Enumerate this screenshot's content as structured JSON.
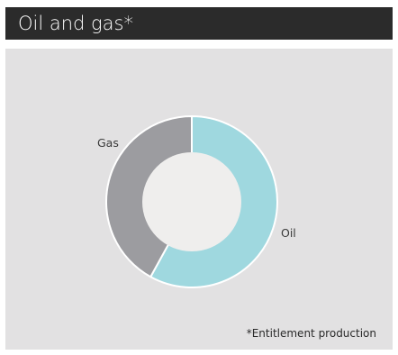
{
  "header": {
    "title": "Oil and gas*"
  },
  "chart_data": {
    "type": "pie",
    "donut": true,
    "categories": [
      "Oil",
      "Gas"
    ],
    "values": [
      0.58,
      0.42
    ],
    "colors": {
      "Oil": "#9fd8df",
      "Gas": "#9c9ca0",
      "hole": "#efeeed"
    },
    "legend": "none",
    "annotation": "*Entitlement production"
  },
  "colors": {
    "header_bg": "#2b2b2b",
    "panel_bg": "#e2e1e2"
  }
}
